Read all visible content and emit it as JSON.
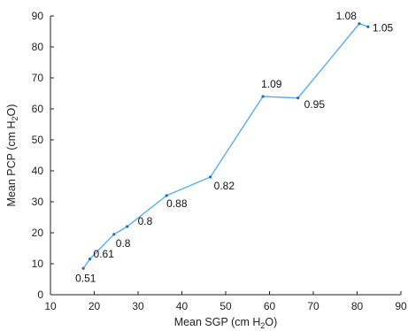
{
  "chart_data": {
    "type": "line",
    "title": "",
    "xlabel": {
      "before": "Mean SGP (cm H",
      "sub": "2",
      "after": "O)"
    },
    "ylabel": {
      "before": "Mean PCP (cm H",
      "sub": "2",
      "after": "O)"
    },
    "xlim": [
      10,
      90
    ],
    "ylim": [
      0,
      90
    ],
    "xticks": [
      10,
      20,
      30,
      40,
      50,
      60,
      70,
      80,
      90
    ],
    "yticks": [
      0,
      10,
      20,
      30,
      40,
      50,
      60,
      70,
      80,
      90
    ],
    "grid": false,
    "legend": "none",
    "series": [
      {
        "color": "#5aaeea",
        "points": [
          {
            "x": 17.5,
            "y": 8.5,
            "label": "0.51"
          },
          {
            "x": 19,
            "y": 11.5,
            "label": "0.61"
          },
          {
            "x": 24.5,
            "y": 19.5,
            "label": "0.8"
          },
          {
            "x": 27.5,
            "y": 22,
            "label": "0.8"
          },
          {
            "x": 36.5,
            "y": 32,
            "label": "0.88"
          },
          {
            "x": 46.5,
            "y": 38,
            "label": "0.82"
          },
          {
            "x": 58.5,
            "y": 64,
            "label": "1.09"
          },
          {
            "x": 66.5,
            "y": 63.5,
            "label": "0.95"
          },
          {
            "x": 80.5,
            "y": 87.5,
            "label": "1.08"
          },
          {
            "x": 82.5,
            "y": 86.5,
            "label": "1.05"
          }
        ]
      }
    ]
  }
}
